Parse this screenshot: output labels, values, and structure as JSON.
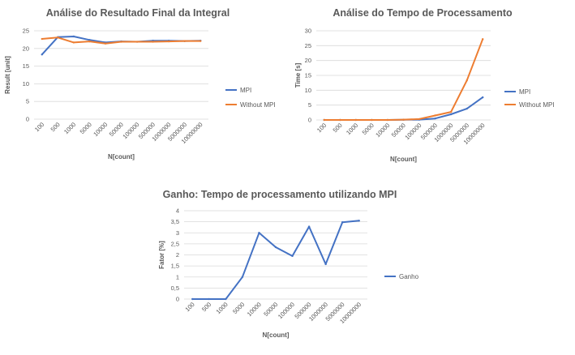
{
  "chart_data": [
    {
      "type": "line",
      "title": "Análise do Resultado Final da Integral",
      "xlabel": "N[count]",
      "ylabel": "Result [unit]",
      "categories": [
        "100",
        "500",
        "1000",
        "5000",
        "10000",
        "50000",
        "100000",
        "500000",
        "1000000",
        "5000000",
        "10000000"
      ],
      "ylim": [
        0,
        25
      ],
      "yticks": [
        "0",
        "5",
        "10",
        "15",
        "20",
        "25"
      ],
      "series": [
        {
          "name": "MPI",
          "color": "#4472c4",
          "values": [
            18.3,
            23.2,
            23.4,
            22.4,
            21.7,
            22.0,
            21.9,
            22.2,
            22.2,
            22.1,
            22.2
          ]
        },
        {
          "name": "Without MPI",
          "color": "#ed7d31",
          "values": [
            22.7,
            23.1,
            21.7,
            22.0,
            21.4,
            21.9,
            21.9,
            21.9,
            22.0,
            22.1,
            22.1
          ]
        }
      ],
      "legend": "right",
      "grid": true
    },
    {
      "type": "line",
      "title": "Análise do Tempo de Processamento",
      "xlabel": "N[count]",
      "ylabel": "Time [s]",
      "categories": [
        "100",
        "500",
        "1000",
        "5000",
        "10000",
        "50000",
        "100000",
        "500000",
        "1000000",
        "5000000",
        "10000000"
      ],
      "ylim": [
        0,
        30
      ],
      "yticks": [
        "0",
        "5",
        "10",
        "15",
        "20",
        "25",
        "30"
      ],
      "series": [
        {
          "name": "MPI",
          "color": "#4472c4",
          "values": [
            0,
            0,
            0,
            0,
            0,
            0.05,
            0.1,
            0.5,
            1.9,
            3.8,
            7.6
          ]
        },
        {
          "name": "Without MPI",
          "color": "#ed7d31",
          "values": [
            0,
            0,
            0,
            0,
            0,
            0.1,
            0.3,
            1.5,
            2.7,
            13.3,
            27.2
          ]
        }
      ],
      "legend": "right",
      "grid": true
    },
    {
      "type": "line",
      "title": "Ganho: Tempo de processamento utilizando MPI",
      "xlabel": "N[count]",
      "ylabel": "Fator [%]",
      "categories": [
        "100",
        "500",
        "1000",
        "5000",
        "10000",
        "50000",
        "100000",
        "500000",
        "1000000",
        "5000000",
        "10000000"
      ],
      "ylim": [
        0,
        4
      ],
      "yticks": [
        "0",
        "0,5",
        "1",
        "1,5",
        "2",
        "2,5",
        "3",
        "3,5",
        "4"
      ],
      "series": [
        {
          "name": "Ganho",
          "color": "#4472c4",
          "values": [
            0,
            0,
            0,
            1.0,
            3.0,
            2.35,
            1.95,
            3.28,
            1.58,
            3.48,
            3.55
          ]
        }
      ],
      "legend": "right",
      "grid": true
    }
  ]
}
